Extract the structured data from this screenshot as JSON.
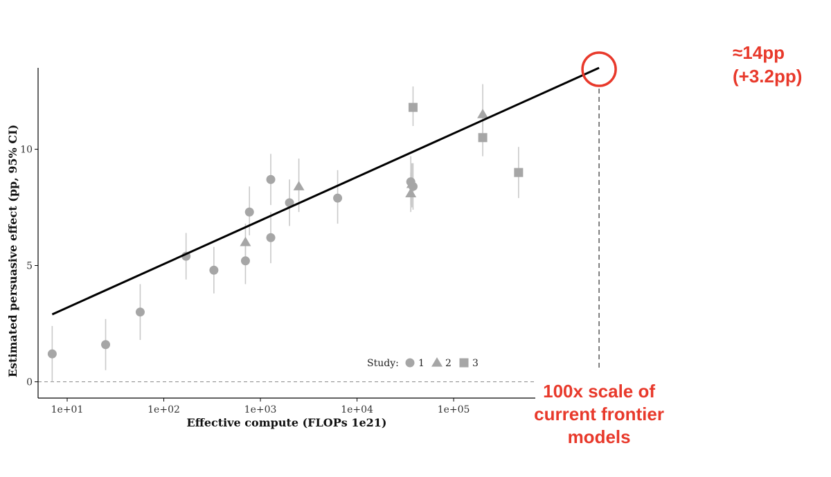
{
  "chart_data": {
    "type": "scatter",
    "title": "",
    "xlabel": "Effective compute (FLOPs 1e21)",
    "ylabel": "Estimated persuasive effect (pp, 95% CI)",
    "x_scale": "log10",
    "xlim": [
      5,
      700000
    ],
    "ylim": [
      -0.7,
      13.5
    ],
    "x_ticks": [
      {
        "value": 10,
        "label": "1e+01"
      },
      {
        "value": 100,
        "label": "1e+02"
      },
      {
        "value": 1000,
        "label": "1e+03"
      },
      {
        "value": 10000,
        "label": "1e+04"
      },
      {
        "value": 100000,
        "label": "1e+05"
      }
    ],
    "y_ticks": [
      {
        "value": 0,
        "label": "0"
      },
      {
        "value": 5,
        "label": "5"
      },
      {
        "value": 10,
        "label": "10"
      }
    ],
    "grid": false,
    "reference_line_y": 0,
    "marker_color": "#a6a6a6",
    "errorbar_color": "#c9c9c9",
    "legend": {
      "title": "Study:",
      "placement": "bottom-right inside plot",
      "entries": [
        {
          "label": "1",
          "shape": "circle"
        },
        {
          "label": "2",
          "shape": "triangle"
        },
        {
          "label": "3",
          "shape": "square"
        }
      ]
    },
    "series": [
      {
        "name": "1",
        "shape": "circle",
        "points": [
          {
            "x": 7,
            "y": 1.2,
            "lo": 0.0,
            "hi": 2.4
          },
          {
            "x": 25,
            "y": 1.6,
            "lo": 0.5,
            "hi": 2.7
          },
          {
            "x": 57,
            "y": 3.0,
            "lo": 1.8,
            "hi": 4.2
          },
          {
            "x": 170,
            "y": 5.4,
            "lo": 4.4,
            "hi": 6.4
          },
          {
            "x": 330,
            "y": 4.8,
            "lo": 3.8,
            "hi": 5.8
          },
          {
            "x": 700,
            "y": 5.2,
            "lo": 4.2,
            "hi": 6.2
          },
          {
            "x": 770,
            "y": 7.3,
            "lo": 6.3,
            "hi": 8.4
          },
          {
            "x": 1280,
            "y": 6.2,
            "lo": 5.1,
            "hi": 7.3
          },
          {
            "x": 1280,
            "y": 8.7,
            "lo": 7.6,
            "hi": 9.8
          },
          {
            "x": 2000,
            "y": 7.7,
            "lo": 6.7,
            "hi": 8.7
          },
          {
            "x": 6300,
            "y": 7.9,
            "lo": 6.8,
            "hi": 9.1
          },
          {
            "x": 36000,
            "y": 8.6,
            "lo": 7.6,
            "hi": 9.7
          },
          {
            "x": 38000,
            "y": 8.4,
            "lo": 7.4,
            "hi": 9.4
          }
        ]
      },
      {
        "name": "2",
        "shape": "triangle",
        "points": [
          {
            "x": 700,
            "y": 6.0,
            "lo": 5.0,
            "hi": 6.8
          },
          {
            "x": 2500,
            "y": 8.4,
            "lo": 7.3,
            "hi": 9.6
          },
          {
            "x": 36000,
            "y": 8.1,
            "lo": 7.3,
            "hi": 9.0
          },
          {
            "x": 37000,
            "y": 8.5,
            "lo": 7.5,
            "hi": 9.4
          },
          {
            "x": 200000,
            "y": 11.5,
            "lo": 10.5,
            "hi": 12.8
          }
        ]
      },
      {
        "name": "3",
        "shape": "square",
        "points": [
          {
            "x": 38000,
            "y": 11.8,
            "lo": 11.0,
            "hi": 12.7
          },
          {
            "x": 200000,
            "y": 10.5,
            "lo": 9.7,
            "hi": 11.3
          },
          {
            "x": 470000,
            "y": 9.0,
            "lo": 7.9,
            "hi": 10.1
          }
        ]
      }
    ],
    "trend_line": {
      "from": {
        "x": 7,
        "y": 2.9
      },
      "to": {
        "x": 3200000,
        "y": 13.5
      },
      "color": "#000000"
    },
    "annotation": {
      "value_label_line1": "≈14pp",
      "value_label_line2": "(+3.2pp)",
      "scale_label_lines": [
        "100x scale of",
        "current frontier",
        "models"
      ],
      "color": "#e8392b"
    }
  }
}
